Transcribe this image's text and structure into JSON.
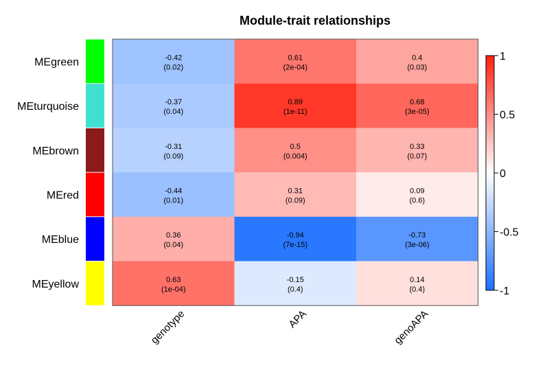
{
  "chart_data": {
    "type": "heatmap",
    "title": "Module-trait relationships",
    "rows": [
      "MEgreen",
      "MEturquoise",
      "MEbrown",
      "MEred",
      "MEblue",
      "MEyellow"
    ],
    "row_colors": [
      "#00ff00",
      "#40e0d0",
      "#8b1a1a",
      "#ff0000",
      "#0000ff",
      "#ffff00"
    ],
    "columns": [
      "genotype",
      "APA",
      "genoAPA"
    ],
    "values": [
      [
        -0.42,
        0.61,
        0.4
      ],
      [
        -0.37,
        0.89,
        0.68
      ],
      [
        -0.31,
        0.5,
        0.33
      ],
      [
        -0.44,
        0.31,
        0.09
      ],
      [
        0.36,
        -0.94,
        -0.73
      ],
      [
        0.63,
        -0.15,
        0.14
      ]
    ],
    "value_labels": [
      [
        "-0.42",
        "0.61",
        "0.4"
      ],
      [
        "-0.37",
        "0.89",
        "0.68"
      ],
      [
        "-0.31",
        "0.5",
        "0.33"
      ],
      [
        "-0.44",
        "0.31",
        "0.09"
      ],
      [
        "0.36",
        "-0.94",
        "-0.73"
      ],
      [
        "0.63",
        "-0.15",
        "0.14"
      ]
    ],
    "pvalues": [
      [
        "(0.02)",
        "(2e-04)",
        "(0.03)"
      ],
      [
        "(0.04)",
        "(1e-11)",
        "(3e-05)"
      ],
      [
        "(0.09)",
        "(0.004)",
        "(0.07)"
      ],
      [
        "(0.01)",
        "(0.09)",
        "(0.6)"
      ],
      [
        "(0.04)",
        "(7e-15)",
        "(3e-06)"
      ],
      [
        "(1e-04)",
        "(0.4)",
        "(0.4)"
      ]
    ],
    "colorbar": {
      "range": [
        -1,
        1
      ],
      "ticks": [
        1,
        0.5,
        0,
        -0.5,
        -1
      ],
      "tick_labels": [
        "1",
        "0.5",
        "0",
        "-0.5",
        "-1"
      ],
      "color_low": "#1b6fff",
      "color_mid": "#ffffff",
      "color_high": "#ff1f0f"
    }
  }
}
